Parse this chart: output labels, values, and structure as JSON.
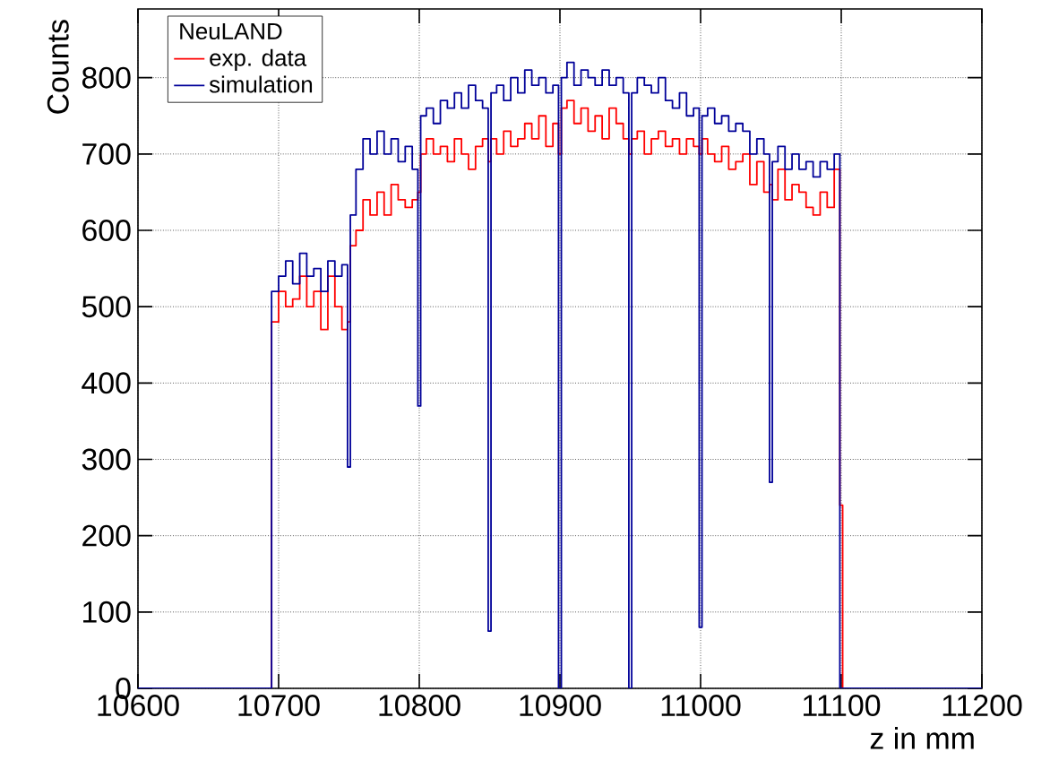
{
  "chart_data": {
    "type": "step",
    "xlabel": "z in mm",
    "ylabel": "Counts",
    "legend_title": "NeuLAND",
    "legend": "top left",
    "grid": true,
    "xlim": [
      10600,
      11200
    ],
    "ylim": [
      0,
      890
    ],
    "xticks": [
      10600,
      10700,
      10800,
      10900,
      11000,
      11100,
      11200
    ],
    "yticks": [
      0,
      100,
      200,
      300,
      400,
      500,
      600,
      700,
      800
    ],
    "x": [
      10600,
      10695,
      10700,
      10705,
      10710,
      10715,
      10720,
      10725,
      10730,
      10735,
      10740,
      10745,
      10749,
      10751,
      10755,
      10760,
      10765,
      10770,
      10775,
      10780,
      10785,
      10790,
      10795,
      10799,
      10801,
      10805,
      10810,
      10815,
      10820,
      10825,
      10830,
      10835,
      10840,
      10845,
      10849,
      10851,
      10855,
      10860,
      10865,
      10870,
      10875,
      10880,
      10885,
      10890,
      10895,
      10899,
      10901,
      10905,
      10910,
      10915,
      10920,
      10925,
      10930,
      10935,
      10940,
      10945,
      10949,
      10951,
      10955,
      10960,
      10965,
      10970,
      10975,
      10980,
      10985,
      10990,
      10995,
      10999,
      11001,
      11005,
      11010,
      11015,
      11020,
      11025,
      11030,
      11035,
      11040,
      11045,
      11049,
      11051,
      11055,
      11060,
      11065,
      11070,
      11075,
      11080,
      11085,
      11090,
      11095,
      11099,
      11101,
      11200
    ],
    "series": [
      {
        "name": "exp. data",
        "color": "#ff0000",
        "values": [
          0,
          480,
          520,
          500,
          510,
          540,
          500,
          520,
          470,
          540,
          500,
          470,
          480,
          580,
          600,
          640,
          620,
          650,
          620,
          660,
          640,
          630,
          640,
          650,
          700,
          720,
          700,
          710,
          690,
          720,
          700,
          680,
          710,
          720,
          690,
          720,
          700,
          730,
          710,
          720,
          740,
          720,
          750,
          710,
          740,
          700,
          760,
          770,
          740,
          760,
          730,
          750,
          720,
          760,
          740,
          720,
          700,
          720,
          730,
          700,
          720,
          730,
          710,
          720,
          700,
          720,
          710,
          700,
          720,
          700,
          690,
          710,
          680,
          690,
          700,
          660,
          690,
          650,
          660,
          640,
          680,
          640,
          660,
          650,
          630,
          620,
          650,
          630,
          680,
          240,
          0,
          0
        ]
      },
      {
        "name": "simulation",
        "color": "#000099",
        "values": [
          0,
          520,
          540,
          560,
          530,
          570,
          540,
          550,
          520,
          560,
          540,
          555,
          290,
          620,
          680,
          720,
          700,
          730,
          700,
          720,
          690,
          710,
          680,
          370,
          750,
          760,
          740,
          770,
          760,
          780,
          760,
          790,
          770,
          760,
          75,
          780,
          790,
          770,
          800,
          780,
          810,
          790,
          800,
          780,
          790,
          0,
          800,
          820,
          790,
          810,
          800,
          790,
          810,
          790,
          800,
          780,
          0,
          780,
          800,
          790,
          780,
          800,
          770,
          760,
          780,
          750,
          760,
          80,
          750,
          760,
          740,
          750,
          730,
          740,
          730,
          700,
          720,
          700,
          270,
          690,
          710,
          680,
          700,
          680,
          690,
          670,
          690,
          680,
          700,
          0,
          0,
          0
        ]
      }
    ]
  }
}
